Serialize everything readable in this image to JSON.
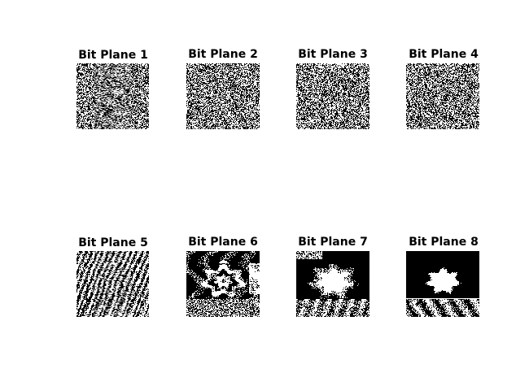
{
  "chart_data": {
    "type": "heatmap",
    "title": "",
    "description_units": "binary bit-plane images (0 = black, 1 = white)",
    "colormap": {
      "zero": "#000000",
      "one": "#ffffff"
    },
    "panels": [
      {
        "title": "Bit Plane 1",
        "bit": 1,
        "style": "noise",
        "white_fraction": 0.5
      },
      {
        "title": "Bit Plane 2",
        "bit": 2,
        "style": "noise",
        "white_fraction": 0.5
      },
      {
        "title": "Bit Plane 3",
        "bit": 3,
        "style": "noise",
        "white_fraction": 0.5
      },
      {
        "title": "Bit Plane 4",
        "bit": 4,
        "style": "noise",
        "white_fraction": 0.5
      },
      {
        "title": "Bit Plane 5",
        "bit": 5,
        "style": "textured-noise",
        "white_fraction": 0.5
      },
      {
        "title": "Bit Plane 6",
        "bit": 6,
        "style": "coarse-structure",
        "white_fraction": 0.5
      },
      {
        "title": "Bit Plane 7",
        "bit": 7,
        "style": "blobs",
        "white_fraction": 0.45
      },
      {
        "title": "Bit Plane 8",
        "bit": 8,
        "style": "silhouette",
        "white_fraction": 0.35
      }
    ]
  }
}
